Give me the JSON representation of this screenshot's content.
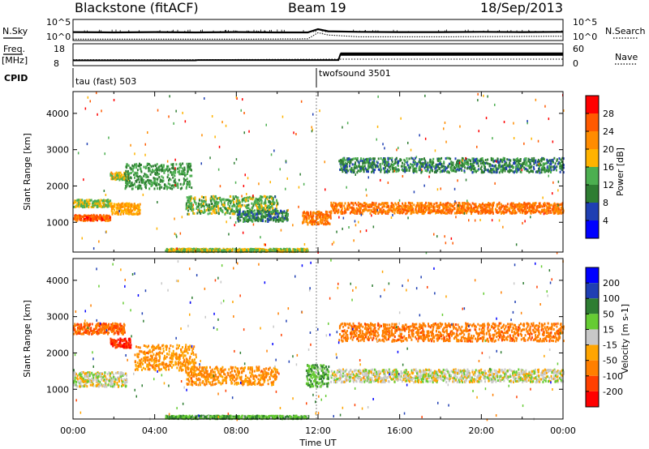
{
  "header": {
    "station": "Blackstone (fitACF)",
    "beam": "Beam 19",
    "date": "18/Sep/2013"
  },
  "side_labels": {
    "nsky": "N.Sky",
    "nsearch": "N.Search",
    "freq_top": "Freq.",
    "freq_unit": "[MHz]",
    "nave": "Nave",
    "cpid": "CPID"
  },
  "colors": {
    "power_scale": [
      "#0000ff",
      "#1f3fb3",
      "#2e7d32",
      "#4caf50",
      "#ffb300",
      "#ff8c00",
      "#ff5a00",
      "#ff0000"
    ],
    "velocity_scale": [
      "#0000ff",
      "#1f3fb3",
      "#2e7d32",
      "#66cc33",
      "#c8c8c8",
      "#ffa500",
      "#ff7f00",
      "#ff4000",
      "#ff0000"
    ],
    "echo_line": "#000000"
  },
  "chart_data": [
    {
      "type": "line",
      "title": "N.Sky / N.Search",
      "x_range": [
        "00:00",
        "24:00"
      ],
      "y_left_ticks": [
        "10^5",
        "10^0"
      ],
      "y_right_ticks": [
        "10^5",
        "10^0"
      ],
      "left_label": "N.Sky",
      "right_label": "N.Search",
      "series": [
        {
          "name": "N.Sky",
          "x": [
            0,
            2,
            4,
            6,
            8,
            10,
            11.5,
            12,
            12.5,
            14,
            16,
            18,
            20,
            22,
            24
          ],
          "values": [
            2.6,
            2.5,
            2.6,
            2.5,
            2.6,
            2.5,
            2.5,
            3.6,
            2.9,
            2.7,
            2.6,
            2.6,
            2.7,
            2.6,
            2.7
          ]
        },
        {
          "name": "N.Search",
          "x": [
            0,
            4,
            8,
            11.5,
            12,
            12.5,
            14,
            18,
            24
          ],
          "values": [
            0.2,
            0.2,
            0.2,
            0.3,
            2.4,
            1.6,
            1.0,
            1.0,
            1.2
          ]
        }
      ]
    },
    {
      "type": "line",
      "title": "Freq. / Nave",
      "x_range": [
        "00:00",
        "24:00"
      ],
      "y_left_ticks": [
        "18",
        "8"
      ],
      "y_right_ticks": [
        "60",
        "0"
      ],
      "series": [
        {
          "name": "Freq.",
          "x": [
            0,
            6,
            6.1,
            13,
            13.1,
            24
          ],
          "values": [
            10.5,
            10.5,
            10.7,
            10.7,
            14.8,
            14.8
          ]
        },
        {
          "name": "Nave",
          "x": [
            0,
            6,
            6.1,
            13,
            13.1,
            24
          ],
          "values": [
            18,
            18,
            18,
            20,
            20,
            20
          ]
        }
      ]
    },
    {
      "type": "table",
      "title": "CPID",
      "entries": [
        {
          "start": "00:00",
          "label": "tau (fast) 503"
        },
        {
          "start": "11:55",
          "label": "twofsound 3501"
        }
      ]
    },
    {
      "type": "heatmap",
      "title": "Power",
      "xlabel": "Time UT",
      "ylabel": "Slant Range [km]",
      "x_ticks": [
        "00:00",
        "04:00",
        "08:00",
        "12:00",
        "16:00",
        "20:00",
        "00:00"
      ],
      "y_ticks": [
        1000,
        2000,
        3000,
        4000
      ],
      "ylim": [
        180,
        4600
      ],
      "colorbar_label": "Power [dB]",
      "colorbar_ticks": [
        4,
        8,
        12,
        16,
        20,
        24,
        28
      ],
      "scatter_bands": [
        {
          "t0": 0.0,
          "t1": 1.8,
          "r_center": 1150,
          "r_width": 150,
          "value": 26
        },
        {
          "t0": 0.0,
          "t1": 1.8,
          "r_center": 1550,
          "r_width": 200,
          "value": 16
        },
        {
          "t0": 1.8,
          "t1": 3.3,
          "r_center": 1400,
          "r_width": 300,
          "value": 20
        },
        {
          "t0": 1.8,
          "t1": 2.7,
          "r_center": 2300,
          "r_width": 200,
          "value": 17
        },
        {
          "t0": 2.5,
          "t1": 5.8,
          "r_center": 2300,
          "r_width": 700,
          "value": 12
        },
        {
          "t0": 5.5,
          "t1": 10.0,
          "r_center": 1500,
          "r_width": 500,
          "value": 14
        },
        {
          "t0": 8.0,
          "t1": 10.5,
          "r_center": 1200,
          "r_width": 300,
          "value": 10
        },
        {
          "t0": 11.2,
          "t1": 12.6,
          "r_center": 1150,
          "r_width": 350,
          "value": 24
        },
        {
          "t0": 12.6,
          "t1": 24.0,
          "r_center": 1420,
          "r_width": 300,
          "value": 24
        },
        {
          "t0": 13.0,
          "t1": 24.0,
          "r_center": 2600,
          "r_width": 400,
          "value": 10
        },
        {
          "t0": 4.5,
          "t1": 11.5,
          "r_center": 260,
          "r_width": 80,
          "value": 16
        }
      ]
    },
    {
      "type": "heatmap",
      "title": "Velocity",
      "xlabel": "Time UT",
      "ylabel": "Slant Range [km]",
      "x_ticks": [
        "00:00",
        "04:00",
        "08:00",
        "12:00",
        "16:00",
        "20:00",
        "00:00"
      ],
      "y_ticks": [
        1000,
        2000,
        3000,
        4000
      ],
      "ylim": [
        180,
        4600
      ],
      "colorbar_label": "Velocity [m s-1]",
      "colorbar_ticks": [
        200,
        100,
        50,
        15,
        -15,
        -50,
        -100,
        -200
      ],
      "scatter_bands": [
        {
          "t0": 0.0,
          "t1": 2.6,
          "r_center": 1300,
          "r_width": 400,
          "value": 0
        },
        {
          "t0": 1.8,
          "t1": 2.8,
          "r_center": 2300,
          "r_width": 250,
          "value": -200
        },
        {
          "t0": 0.0,
          "t1": 2.5,
          "r_center": 2700,
          "r_width": 300,
          "value": -100
        },
        {
          "t0": 3.0,
          "t1": 6.0,
          "r_center": 1900,
          "r_width": 700,
          "value": -50
        },
        {
          "t0": 5.5,
          "t1": 10.0,
          "r_center": 1400,
          "r_width": 500,
          "value": -60
        },
        {
          "t0": 11.4,
          "t1": 12.5,
          "r_center": 1400,
          "r_width": 600,
          "value": 40
        },
        {
          "t0": 12.6,
          "t1": 24.0,
          "r_center": 1400,
          "r_width": 350,
          "value": 0
        },
        {
          "t0": 13.0,
          "t1": 24.0,
          "r_center": 2600,
          "r_width": 500,
          "value": -80
        },
        {
          "t0": 4.5,
          "t1": 11.5,
          "r_center": 260,
          "r_width": 80,
          "value": 40
        }
      ]
    }
  ]
}
